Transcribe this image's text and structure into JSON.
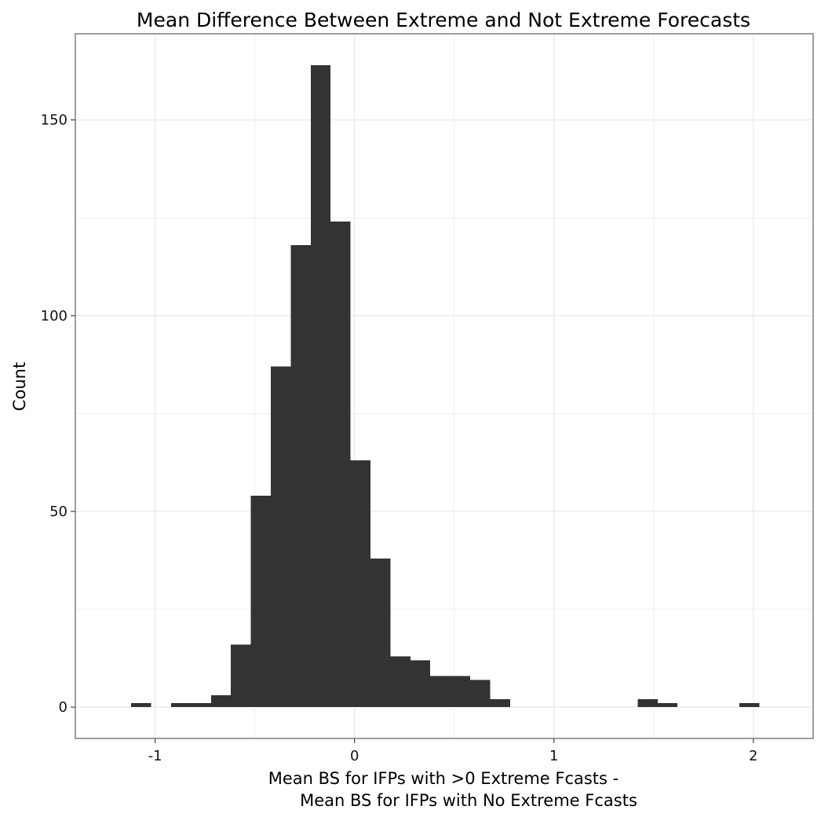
{
  "chart_data": {
    "type": "bar",
    "title": "Mean Difference Between Extreme and Not Extreme Forecasts",
    "xlabel_line1": "Mean BS for IFPs with >0 Extreme Fcasts -",
    "xlabel_line2": "Mean BS for IFPs with No Extreme Fcasts",
    "ylabel": "Count",
    "xlim": [
      -1.4,
      2.3
    ],
    "ylim": [
      -8,
      172
    ],
    "x_ticks": [
      -1,
      0,
      1,
      2
    ],
    "x_tick_labels": [
      "-1",
      "0",
      "1",
      "2"
    ],
    "y_ticks": [
      0,
      50,
      100,
      150
    ],
    "y_tick_labels": [
      "0",
      "50",
      "100",
      "150"
    ],
    "grid": true,
    "bin_width": 0.1,
    "bins": [
      {
        "x0": -1.12,
        "x1": -1.02,
        "count": 1
      },
      {
        "x0": -0.92,
        "x1": -0.82,
        "count": 1
      },
      {
        "x0": -0.82,
        "x1": -0.72,
        "count": 1
      },
      {
        "x0": -0.72,
        "x1": -0.62,
        "count": 3
      },
      {
        "x0": -0.62,
        "x1": -0.52,
        "count": 16
      },
      {
        "x0": -0.52,
        "x1": -0.42,
        "count": 54
      },
      {
        "x0": -0.42,
        "x1": -0.32,
        "count": 87
      },
      {
        "x0": -0.32,
        "x1": -0.22,
        "count": 118
      },
      {
        "x0": -0.22,
        "x1": -0.12,
        "count": 164
      },
      {
        "x0": -0.12,
        "x1": -0.02,
        "count": 124
      },
      {
        "x0": -0.02,
        "x1": 0.08,
        "count": 63
      },
      {
        "x0": 0.08,
        "x1": 0.18,
        "count": 38
      },
      {
        "x0": 0.18,
        "x1": 0.28,
        "count": 13
      },
      {
        "x0": 0.28,
        "x1": 0.38,
        "count": 12
      },
      {
        "x0": 0.38,
        "x1": 0.48,
        "count": 8
      },
      {
        "x0": 0.48,
        "x1": 0.58,
        "count": 8
      },
      {
        "x0": 0.58,
        "x1": 0.68,
        "count": 7
      },
      {
        "x0": 0.68,
        "x1": 0.78,
        "count": 2
      },
      {
        "x0": 1.42,
        "x1": 1.52,
        "count": 2
      },
      {
        "x0": 1.52,
        "x1": 1.62,
        "count": 1
      },
      {
        "x0": 1.93,
        "x1": 2.03,
        "count": 1
      }
    ],
    "bar_color": "#333333",
    "grid_color": "#ebebeb",
    "panel_border_color": "#7f7f7f"
  }
}
